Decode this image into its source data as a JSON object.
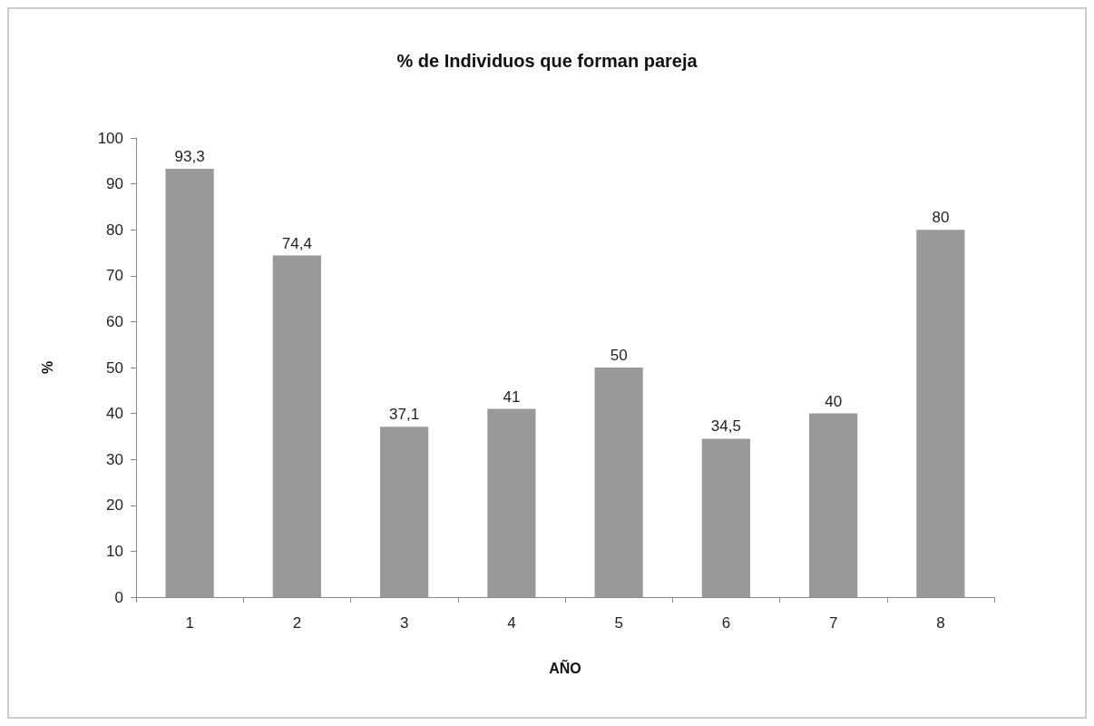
{
  "chart_data": {
    "type": "bar",
    "title": "% de Individuos que forman pareja",
    "xlabel": "AÑO",
    "ylabel": "%",
    "categories": [
      "1",
      "2",
      "3",
      "4",
      "5",
      "6",
      "7",
      "8"
    ],
    "values": [
      93.3,
      74.4,
      37.1,
      41,
      50,
      34.5,
      40,
      80
    ],
    "value_labels": [
      "93,3",
      "74,4",
      "37,1",
      "41",
      "50",
      "34,5",
      "40",
      "80"
    ],
    "color": "#999999",
    "ylim": [
      0,
      100
    ],
    "yticks": [
      0,
      10,
      20,
      30,
      40,
      50,
      60,
      70,
      80,
      90,
      100
    ],
    "grid": false
  }
}
